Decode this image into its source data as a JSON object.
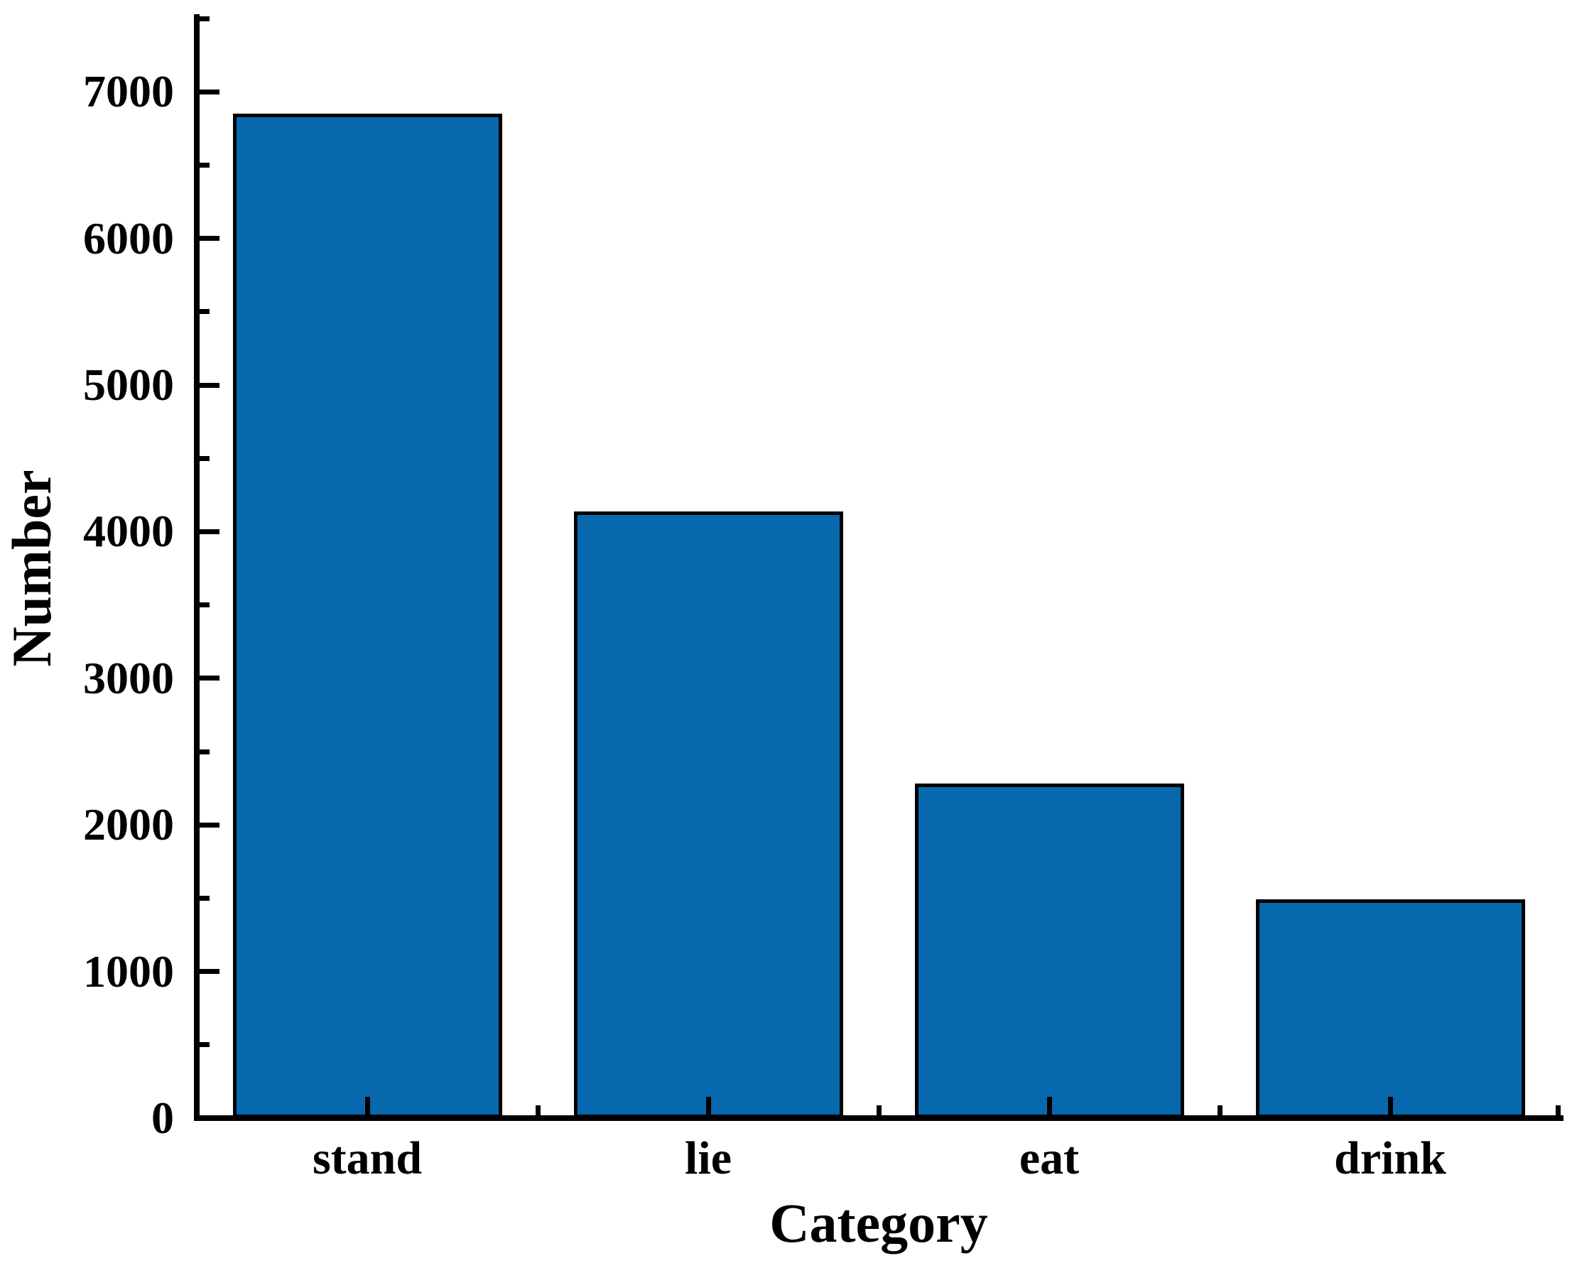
{
  "chart_data": {
    "type": "bar",
    "title": "",
    "xlabel": "Category",
    "ylabel": "Number",
    "categories": [
      "stand",
      "lie",
      "eat",
      "drink"
    ],
    "values": [
      6850,
      4140,
      2280,
      1490
    ],
    "ylim": [
      0,
      7500
    ],
    "y_major_tick_interval": 1000,
    "y_minor_tick_interval": 500,
    "y_tick_labels": [
      "0",
      "1000",
      "2000",
      "3000",
      "4000",
      "5000",
      "6000",
      "7000"
    ],
    "grid": false,
    "legend": "none",
    "tick_direction": "in",
    "bar_width_fraction": 0.79,
    "bar_fill_color": "#0768AE",
    "bar_edge_color": "#000000",
    "axis_color": "#000000",
    "text_color": "#000000"
  }
}
